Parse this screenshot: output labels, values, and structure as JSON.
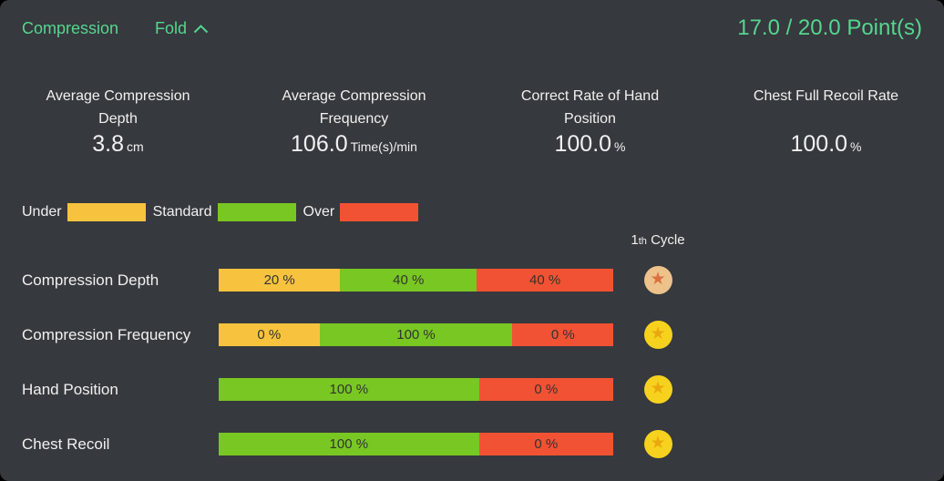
{
  "accent_color": "#55d68f",
  "header": {
    "title": "Compression",
    "fold_label": "Fold",
    "points_label": "17.0 / 20.0 Point(s)"
  },
  "stats": [
    {
      "title_line1": "Average Compression",
      "title_line2": "Depth",
      "value": "3.8",
      "unit": "cm"
    },
    {
      "title_line1": "Average Compression",
      "title_line2": "Frequency",
      "value": "106.0",
      "unit": "Time(s)/min"
    },
    {
      "title_line1": "Correct Rate of Hand",
      "title_line2": "Position",
      "value": "100.0",
      "unit": "%"
    },
    {
      "title_line1": "Chest Full Recoil Rate",
      "title_line2": "",
      "value": "100.0",
      "unit": "%"
    }
  ],
  "legend": [
    {
      "label": "Under",
      "color": "#f7c33e"
    },
    {
      "label": "Standard",
      "color": "#79c722"
    },
    {
      "label": "Over",
      "color": "#f15233"
    }
  ],
  "cycle_header": {
    "number": "1",
    "ordinal": "th",
    "label": " Cycle"
  },
  "medals": {
    "bronze": {
      "circle": "#edc28b",
      "star": "#dd7040"
    },
    "gold": {
      "circle": "#f6d21e",
      "star": "#eaa80f"
    }
  },
  "chart_data": {
    "type": "bar",
    "orientation": "horizontal-stacked",
    "categories": [
      "Under",
      "Standard",
      "Over"
    ],
    "value_unit": "%",
    "rows": [
      {
        "label": "Compression Depth",
        "medal": "bronze",
        "segments": [
          {
            "category": "Under",
            "value": 20,
            "label": "20 %"
          },
          {
            "category": "Standard",
            "value": 40,
            "label": "40 %"
          },
          {
            "category": "Over",
            "value": 40,
            "label": "40 %"
          }
        ]
      },
      {
        "label": "Compression Frequency",
        "medal": "gold",
        "segments": [
          {
            "category": "Under",
            "value": 0,
            "label": "0 %"
          },
          {
            "category": "Standard",
            "value": 100,
            "label": "100 %"
          },
          {
            "category": "Over",
            "value": 0,
            "label": "0 %"
          }
        ]
      },
      {
        "label": "Hand Position",
        "medal": "gold",
        "segments": [
          {
            "category": "Standard",
            "value": 100,
            "label": "100 %"
          },
          {
            "category": "Over",
            "value": 0,
            "label": "0 %"
          }
        ]
      },
      {
        "label": "Chest Recoil",
        "medal": "gold",
        "segments": [
          {
            "category": "Standard",
            "value": 100,
            "label": "100 %"
          },
          {
            "category": "Over",
            "value": 0,
            "label": "0 %"
          }
        ]
      }
    ]
  }
}
